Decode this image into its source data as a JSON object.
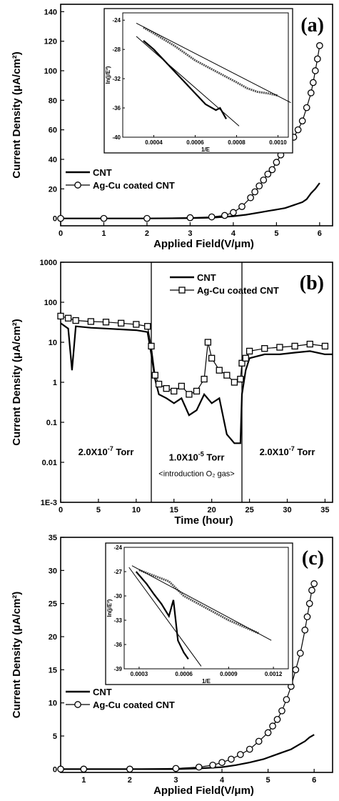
{
  "chart_data": [
    {
      "type": "line",
      "label": "(a)",
      "xlabel": "Applied Field(V/μm)",
      "ylabel": "Current Density (μA/cm²)",
      "xlim": [
        0,
        6.3
      ],
      "ylim": [
        -5,
        145
      ],
      "xticks": [
        0,
        1,
        2,
        3,
        4,
        5,
        6
      ],
      "yticks": [
        0,
        20,
        40,
        60,
        80,
        100,
        120,
        140
      ],
      "legend_position": "lower-left",
      "series": [
        {
          "name": "CNT",
          "marker": "line",
          "x": [
            0,
            1,
            2,
            3,
            3.5,
            4.0,
            4.3,
            4.6,
            4.8,
            5.0,
            5.2,
            5.4,
            5.5,
            5.6,
            5.7,
            5.8,
            5.9,
            6.0
          ],
          "y": [
            0,
            0,
            0,
            0.2,
            0.5,
            1.5,
            2.5,
            4,
            5,
            6,
            7,
            9,
            10,
            11,
            13,
            17,
            20,
            24
          ]
        },
        {
          "name": "Ag-Cu coated CNT",
          "marker": "circle",
          "x": [
            0,
            1,
            2,
            3,
            3.5,
            3.8,
            4.0,
            4.2,
            4.4,
            4.5,
            4.6,
            4.7,
            4.8,
            4.9,
            5.0,
            5.1,
            5.2,
            5.3,
            5.4,
            5.5,
            5.6,
            5.7,
            5.8,
            5.85,
            5.9,
            5.95,
            6.0
          ],
          "y": [
            0,
            0,
            0,
            0.5,
            1,
            2,
            4,
            8,
            14,
            18,
            22,
            26,
            30,
            33,
            38,
            43,
            48,
            52,
            55,
            60,
            66,
            75,
            85,
            92,
            100,
            108,
            117
          ]
        }
      ],
      "inset": {
        "xlabel": "1/E",
        "ylabel": "ln(j/E²)",
        "xlim": [
          0.00025,
          0.00105
        ],
        "ylim": [
          -40,
          -23
        ],
        "xticks": [
          0.0004,
          0.0006,
          0.0008,
          0.001
        ],
        "xtick_labels": [
          "0.0004",
          "0.0006",
          "0.0008",
          "0.0010"
        ],
        "yticks": [
          -40,
          -36,
          -32,
          -28,
          -24
        ],
        "series": [
          {
            "name": "CNT",
            "x": [
              0.00035,
              0.0004,
              0.00045,
              0.0005,
              0.00055,
              0.0006,
              0.00065,
              0.0007,
              0.00072,
              0.00075
            ],
            "y": [
              -26.8,
              -28.0,
              -29.5,
              -31.0,
              -32.5,
              -34.0,
              -35.5,
              -36.3,
              -36.0,
              -37.5
            ]
          },
          {
            "name": "Ag-Cu coated CNT",
            "x": [
              0.00035,
              0.0004,
              0.0005,
              0.0006,
              0.0007,
              0.0008,
              0.00085,
              0.0009,
              0.00095,
              0.001
            ],
            "y": [
              -25.0,
              -25.8,
              -27.5,
              -29.5,
              -31.0,
              -32.5,
              -33.3,
              -33.8,
              -34.0,
              -34.3
            ]
          }
        ]
      }
    },
    {
      "type": "line",
      "label": "(b)",
      "xlabel": "Time (hour)",
      "ylabel": "Current Density (μA/cm²)",
      "yscale": "log",
      "xlim": [
        0,
        36
      ],
      "ylim": [
        0.001,
        1000
      ],
      "xticks": [
        0,
        5,
        10,
        15,
        20,
        25,
        30,
        35
      ],
      "yticks": [
        0.001,
        0.01,
        0.1,
        1,
        10,
        100,
        1000
      ],
      "ytick_labels": [
        "1E-3",
        "0.01",
        "0.1",
        "1",
        "10",
        "100",
        "1000"
      ],
      "dividers_x": [
        12,
        24
      ],
      "legend_position": "top-center",
      "series": [
        {
          "name": "CNT",
          "marker": "line",
          "x": [
            0,
            1,
            1.5,
            2,
            4,
            6,
            8,
            10,
            11.5,
            12,
            12.5,
            13,
            14,
            15,
            16,
            17,
            18,
            19,
            20,
            21,
            22,
            23,
            23.8,
            24,
            24.5,
            25,
            27,
            29,
            31,
            33,
            35,
            36
          ],
          "y": [
            30,
            22,
            2,
            25,
            23,
            22,
            21,
            20,
            18,
            5,
            1.2,
            0.5,
            0.4,
            0.3,
            0.4,
            0.15,
            0.2,
            0.5,
            0.3,
            0.4,
            0.05,
            0.03,
            0.03,
            0.5,
            2,
            4,
            5,
            5,
            5.5,
            6,
            5,
            5
          ]
        },
        {
          "name": "Ag-Cu coated CNT",
          "marker": "square",
          "x": [
            0,
            1,
            2,
            4,
            6,
            8,
            10,
            11.5,
            12,
            12.5,
            13,
            14,
            15,
            16,
            17,
            18,
            19,
            19.5,
            20,
            21,
            22,
            23,
            23.8,
            24,
            24.5,
            25,
            27,
            29,
            31,
            33,
            35
          ],
          "y": [
            45,
            40,
            35,
            33,
            32,
            30,
            28,
            25,
            8,
            1.5,
            0.9,
            0.7,
            0.6,
            0.8,
            0.5,
            0.6,
            1.2,
            10,
            4,
            2,
            1.5,
            1,
            1.2,
            3,
            4,
            6,
            7,
            7.5,
            8,
            9,
            8
          ]
        }
      ],
      "annotations": [
        {
          "text_main": "2.0X10",
          "text_exp": "-7",
          "text_unit": " Torr",
          "at_x": 6,
          "at_y": 0.015
        },
        {
          "text_main": "1.0X10",
          "text_exp": "-5",
          "text_unit": " Torr",
          "at_x": 18,
          "at_y": 0.011
        },
        {
          "text": "<introduction O₂ gas>",
          "at_x": 18,
          "at_y": 0.0045
        },
        {
          "text_main": "2.0X10",
          "text_exp": "-7",
          "text_unit": " Torr",
          "at_x": 30,
          "at_y": 0.015
        }
      ]
    },
    {
      "type": "line",
      "label": "(c)",
      "xlabel": "Applied Field(V/μm)",
      "ylabel": "Current Density (μA/cm²)",
      "xlim": [
        0.5,
        6.4
      ],
      "ylim": [
        -0.5,
        35
      ],
      "xticks": [
        1,
        2,
        3,
        4,
        5,
        6
      ],
      "yticks": [
        0,
        5,
        10,
        15,
        20,
        25,
        30,
        35
      ],
      "legend_position": "lower-left",
      "series": [
        {
          "name": "CNT",
          "marker": "line",
          "x": [
            0.5,
            1,
            2,
            3,
            3.5,
            4.0,
            4.3,
            4.6,
            4.9,
            5.1,
            5.3,
            5.5,
            5.7,
            5.8,
            5.9,
            6.0
          ],
          "y": [
            0,
            0,
            0,
            0,
            0.1,
            0.3,
            0.6,
            1.0,
            1.5,
            2.0,
            2.5,
            3.0,
            3.8,
            4.2,
            4.8,
            5.2
          ]
        },
        {
          "name": "Ag-Cu coated CNT",
          "marker": "circle",
          "x": [
            0.5,
            1,
            2,
            3,
            3.5,
            3.8,
            4.0,
            4.2,
            4.4,
            4.6,
            4.8,
            5.0,
            5.1,
            5.2,
            5.3,
            5.4,
            5.5,
            5.6,
            5.7,
            5.8,
            5.85,
            5.9,
            5.95,
            6.0
          ],
          "y": [
            0,
            0,
            0,
            0.1,
            0.3,
            0.6,
            1.0,
            1.5,
            2.2,
            3.0,
            4.2,
            5.5,
            6.5,
            7.5,
            8.8,
            10.5,
            12.5,
            15,
            17.5,
            21,
            23,
            25,
            27,
            28
          ]
        }
      ],
      "inset": {
        "xlabel": "1/E",
        "ylabel": "ln(j/E²)",
        "xlim": [
          0.0002,
          0.0013
        ],
        "ylim": [
          -39,
          -24
        ],
        "xticks": [
          0.0003,
          0.0006,
          0.0009,
          0.0012
        ],
        "xtick_labels": [
          "0.0003",
          "0.0006",
          "0.0009",
          "0.0012"
        ],
        "yticks": [
          -39,
          -36,
          -33,
          -30,
          -27,
          -24
        ],
        "series": [
          {
            "name": "CNT",
            "x": [
              0.00028,
              0.00035,
              0.0004,
              0.00045,
              0.0005,
              0.00053,
              0.00056,
              0.0006,
              0.00063
            ],
            "y": [
              -27.0,
              -28.5,
              -29.8,
              -31.0,
              -32.5,
              -30.5,
              -35.5,
              -37.0,
              -37.8
            ]
          },
          {
            "name": "Ag-Cu coated CNT",
            "x": [
              0.0003,
              0.0004,
              0.0005,
              0.0006,
              0.0007,
              0.0008,
              0.0009,
              0.001,
              0.0011
            ],
            "y": [
              -26.8,
              -27.5,
              -28.2,
              -30.0,
              -31.0,
              -32.0,
              -33.0,
              -33.8,
              -34.6
            ]
          }
        ]
      }
    }
  ]
}
